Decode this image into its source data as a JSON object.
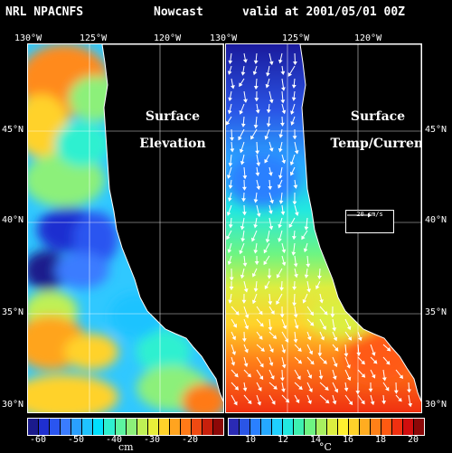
{
  "title": {
    "model": "NRL NPACNFS",
    "kind": "Nowcast",
    "valid": "valid at 2001/05/01 00Z"
  },
  "longitude_labels": [
    "130°W",
    "125°W",
    "120°W"
  ],
  "latitude_labels": [
    "45°N",
    "40°N",
    "35°N",
    "30°N"
  ],
  "left_panel": {
    "label_line1": "Surface",
    "label_line2": "Elevation",
    "colorbar_ticks": [
      "-60",
      "-50",
      "-40",
      "-30",
      "-20"
    ],
    "unit": "cm"
  },
  "right_panel": {
    "label_line1": "Surface",
    "label_line2": "Temp/Current",
    "scale_label": "20 cm/s",
    "colorbar_ticks": [
      "10",
      "12",
      "14",
      "16",
      "18",
      "20"
    ],
    "unit": "°C"
  },
  "colors": {
    "ssh_scale": [
      "#1a1a8c",
      "#1f2fd0",
      "#2a55f0",
      "#3a7cff",
      "#2aa0ff",
      "#1fc3ff",
      "#00e0ff",
      "#2ef0d0",
      "#5cf5a0",
      "#8cf07a",
      "#bff055",
      "#e8ef3a",
      "#ffd22a",
      "#ffa41f",
      "#ff7a18",
      "#f04a12",
      "#c8200c",
      "#8c0808"
    ],
    "sst_scale": [
      "#2a2ab5",
      "#2a55e6",
      "#2a80ff",
      "#25a8ff",
      "#1fd0ff",
      "#22e8e0",
      "#3ef0b0",
      "#6ef582",
      "#a8f060",
      "#dcee40",
      "#fff030",
      "#ffd22a",
      "#ffac20",
      "#ff8018",
      "#ff5a12",
      "#f03010",
      "#d00e0e",
      "#8c0808"
    ],
    "land": "#000000",
    "coast": "#ffffff"
  }
}
